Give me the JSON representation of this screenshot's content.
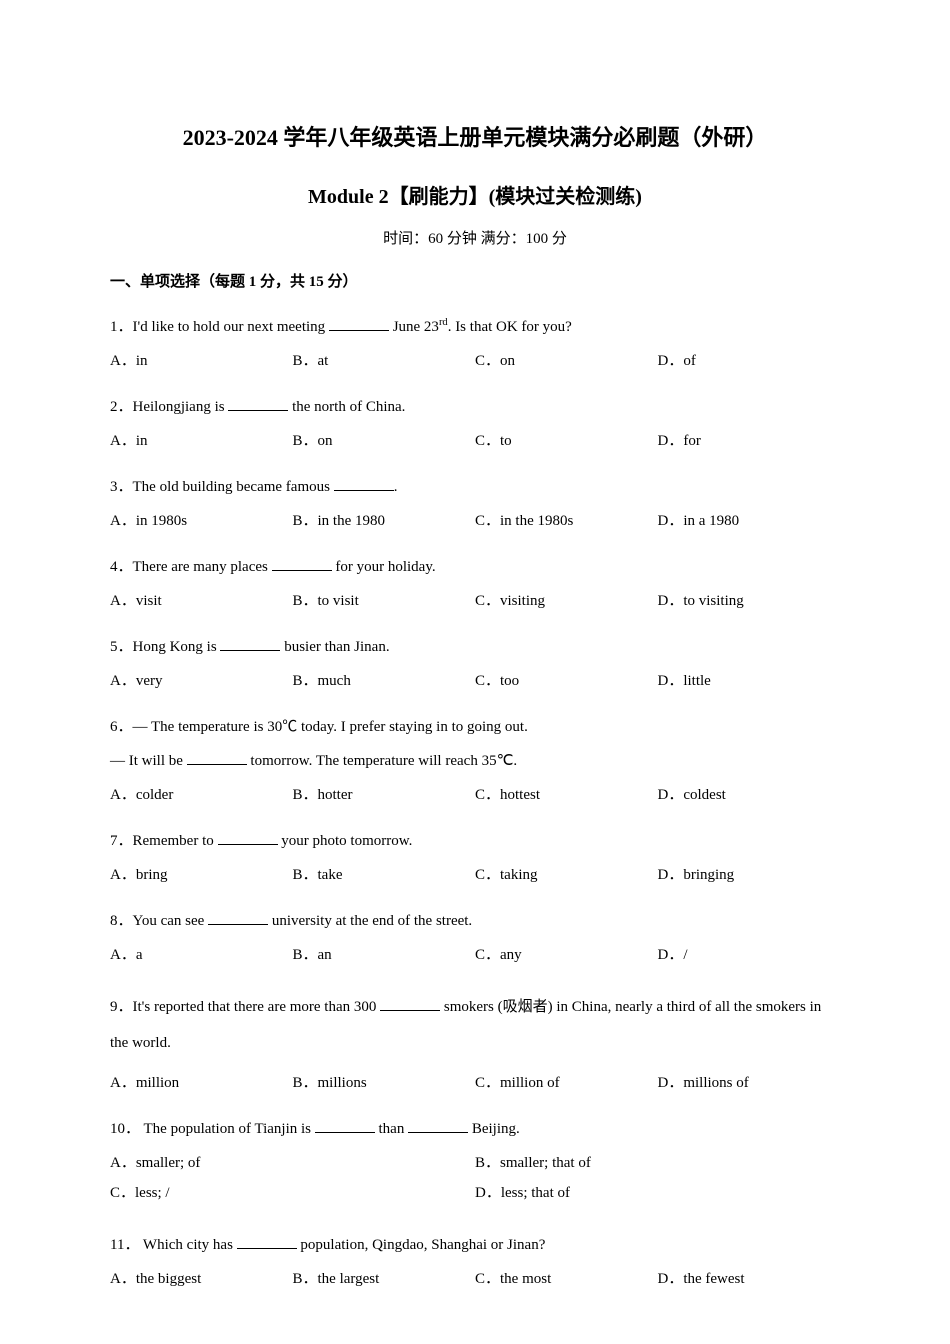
{
  "title": "2023-2024 学年八年级英语上册单元模块满分必刷题（外研）",
  "subtitle": "Module 2【刷能力】(模块过关检测练)",
  "meta": "时间：60 分钟  满分：100 分",
  "section_head": "一、单项选择（每题 1 分，共 15 分）",
  "questions": [
    {
      "num": "1．",
      "pre": "I'd like to hold our next meeting ",
      "post": " June 23",
      "sup": "rd",
      "tail": ". Is that OK for you?",
      "layout": "4col",
      "opts": {
        "a": "A．in",
        "b": "B．at",
        "c": "C．on",
        "d": "D．of"
      }
    },
    {
      "num": "2．",
      "pre": "Heilongjiang is ",
      "post": " the north of China.",
      "layout": "4col",
      "opts": {
        "a": "A．in",
        "b": "B．on",
        "c": "C．to",
        "d": "D．for"
      }
    },
    {
      "num": "3．",
      "pre": "The old building became famous ",
      "post": ".",
      "layout": "4col",
      "opts": {
        "a": "A．in 1980s",
        "b": "B．in the 1980",
        "c": "C．in the 1980s",
        "d": "D．in a 1980"
      }
    },
    {
      "num": "4．",
      "pre": "There are many places ",
      "post": " for your holiday.",
      "layout": "4col",
      "opts": {
        "a": "A．visit",
        "b": "B．to visit",
        "c": "C．visiting",
        "d": "D．to visiting"
      }
    },
    {
      "num": "5．",
      "pre": "Hong Kong is ",
      "post": " busier than Jinan.",
      "layout": "4col",
      "opts": {
        "a": "A．very",
        "b": "B．much",
        "c": "C．too",
        "d": "D．little"
      }
    },
    {
      "num": "6．",
      "pre": "— The temperature is 30℃ today. I prefer staying in to going out.",
      "sub_pre": "— It will be ",
      "sub_post": " tomorrow. The temperature will reach 35℃.",
      "layout": "4col",
      "opts": {
        "a": "A．colder",
        "b": "B．hotter",
        "c": "C．hottest",
        "d": "D．coldest"
      }
    },
    {
      "num": "7．",
      "pre": "Remember to ",
      "post": " your photo tomorrow.",
      "layout": "4col",
      "opts": {
        "a": "A．bring",
        "b": "B．take",
        "c": "C．taking",
        "d": "D．bringing"
      }
    },
    {
      "num": "8．",
      "pre": "You can see ",
      "post": " university at the end of the street.",
      "layout": "4col",
      "opts": {
        "a": "A．a",
        "b": "B．an",
        "c": "C．any",
        "d": "D．/"
      }
    },
    {
      "num": "9．",
      "pre": "It's reported that there are more than 300 ",
      "post": " smokers (吸烟者) in China, nearly a third of all the smokers in the world.",
      "layout": "4col",
      "opts": {
        "a": "A．million",
        "b": "B．millions",
        "c": "C．million of",
        "d": "D．millions of"
      }
    },
    {
      "num": "10．",
      "pre": " The population of Tianjin is ",
      "mid": " than ",
      "post": " Beijing.",
      "layout": "2col",
      "opts": {
        "a": "A．smaller; of",
        "b": "B．smaller; that of",
        "c": "C．less; /",
        "d": "D．less; that of"
      }
    },
    {
      "num": "11．",
      "pre": " Which city has ",
      "post": " population, Qingdao, Shanghai or Jinan?",
      "layout": "4col",
      "opts": {
        "a": "A．the biggest",
        "b": "B．the largest",
        "c": "C．the most",
        "d": "D．the fewest"
      }
    }
  ]
}
